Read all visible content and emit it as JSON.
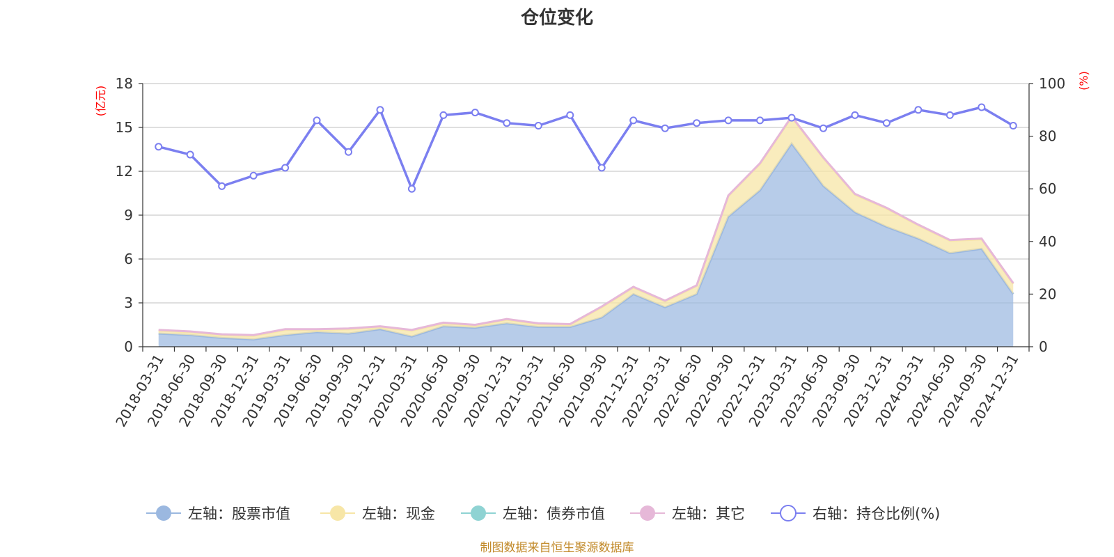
{
  "chart_data": {
    "type": "area",
    "title": "仓位变化",
    "left_axis_unit": "(亿元)",
    "right_axis_unit": "(%)",
    "left_ylim": [
      0,
      18
    ],
    "left_ticks": [
      "0",
      "3",
      "6",
      "9",
      "12",
      "15",
      "18"
    ],
    "right_ylim": [
      0,
      100
    ],
    "right_ticks": [
      "0",
      "20",
      "40",
      "60",
      "80",
      "100"
    ],
    "categories": [
      "2018-03-31",
      "2018-06-30",
      "2018-09-30",
      "2018-12-31",
      "2019-03-31",
      "2019-06-30",
      "2019-09-30",
      "2019-12-31",
      "2020-03-31",
      "2020-06-30",
      "2020-09-30",
      "2020-12-31",
      "2021-03-31",
      "2021-06-30",
      "2021-09-30",
      "2021-12-31",
      "2022-03-31",
      "2022-06-30",
      "2022-09-30",
      "2022-12-31",
      "2023-03-31",
      "2023-06-30",
      "2023-09-30",
      "2023-12-31",
      "2024-03-31",
      "2024-06-30",
      "2024-09-30",
      "2024-12-31"
    ],
    "series": [
      {
        "name": "左轴：股票市值",
        "axis": "left",
        "color": "#9bb8e0",
        "values": [
          0.9,
          0.8,
          0.6,
          0.5,
          0.8,
          1.0,
          0.9,
          1.2,
          0.7,
          1.4,
          1.3,
          1.6,
          1.35,
          1.35,
          2.0,
          3.6,
          2.7,
          3.6,
          8.9,
          10.7,
          13.9,
          11.0,
          9.2,
          8.2,
          7.4,
          6.4,
          6.7,
          3.6
        ]
      },
      {
        "name": "左轴：现金",
        "axis": "left",
        "color": "#f7e6a7",
        "values": [
          0.2,
          0.2,
          0.2,
          0.25,
          0.35,
          0.15,
          0.3,
          0.15,
          0.4,
          0.2,
          0.15,
          0.25,
          0.2,
          0.15,
          0.7,
          0.45,
          0.4,
          0.55,
          1.4,
          1.8,
          1.8,
          1.9,
          1.2,
          1.25,
          0.9,
          0.85,
          0.65,
          0.7
        ]
      },
      {
        "name": "左轴：债券市值",
        "axis": "left",
        "color": "#8fd3d3",
        "values": [
          0,
          0,
          0,
          0,
          0,
          0,
          0,
          0,
          0,
          0,
          0,
          0,
          0,
          0,
          0,
          0,
          0,
          0,
          0,
          0,
          0,
          0,
          0,
          0,
          0,
          0,
          0,
          0
        ]
      },
      {
        "name": "左轴：其它",
        "axis": "left",
        "color": "#e6b8d8",
        "values": [
          0.05,
          0.05,
          0.05,
          0.05,
          0.05,
          0.05,
          0.05,
          0.05,
          0.05,
          0.05,
          0.05,
          0.05,
          0.05,
          0.05,
          0.05,
          0.05,
          0.05,
          0.05,
          0.05,
          0.05,
          0.05,
          0.05,
          0.05,
          0.05,
          0.05,
          0.05,
          0.05,
          0.05
        ]
      },
      {
        "name": "右轴：持仓比例(%)",
        "axis": "right",
        "color": "#7b7ff0",
        "values": [
          76,
          73,
          61,
          65,
          68,
          86,
          74,
          90,
          60,
          88,
          89,
          85,
          84,
          88,
          68,
          86,
          83,
          85,
          86,
          86,
          87,
          83,
          88,
          85,
          90,
          88,
          91,
          84
        ]
      }
    ],
    "legend_position": "bottom",
    "grid": true
  },
  "footer": "制图数据来自恒生聚源数据库"
}
